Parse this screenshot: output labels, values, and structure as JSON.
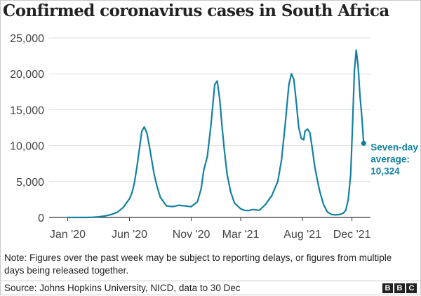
{
  "chart_data": {
    "type": "line",
    "title": "Confirmed coronavirus cases in South Africa",
    "xlabel": "",
    "ylabel": "",
    "ylim": [
      0,
      25000
    ],
    "y_ticks": [
      0,
      5000,
      10000,
      15000,
      20000,
      25000
    ],
    "y_tick_labels": [
      "0",
      "5,000",
      "10,000",
      "15,000",
      "20,000",
      "25,000"
    ],
    "x_tick_labels": [
      "Jan '20",
      "Jun '20",
      "Nov '20",
      "Mar '21",
      "Aug '21",
      "Dec '21"
    ],
    "x_tick_months": [
      0,
      5,
      10,
      14,
      19,
      23
    ],
    "xlim_months": [
      -1.5,
      24.5
    ],
    "series": [
      {
        "name": "Seven-day average",
        "color": "#1380a1",
        "x_months": [
          0,
          1,
          1.5,
          2,
          2.2,
          2.5,
          3,
          3.5,
          4,
          4.5,
          5,
          5.2,
          5.4,
          5.6,
          5.8,
          6.0,
          6.2,
          6.4,
          6.6,
          6.8,
          7.0,
          7.2,
          7.5,
          8,
          8.5,
          9,
          9.5,
          10,
          10.5,
          10.8,
          11,
          11.3,
          11.6,
          11.9,
          12.1,
          12.3,
          12.5,
          12.7,
          12.9,
          13.2,
          13.5,
          14,
          14.3,
          14.6,
          15,
          15.5,
          16,
          16.5,
          17,
          17.3,
          17.6,
          17.9,
          18.1,
          18.3,
          18.5,
          18.7,
          18.9,
          19.1,
          19.2,
          19.4,
          19.6,
          19.8,
          20.0,
          20.2,
          20.4,
          20.7,
          21,
          21.3,
          21.6,
          22,
          22.3,
          22.5,
          22.7,
          22.9,
          23.05,
          23.2,
          23.35,
          23.5,
          23.65,
          23.8,
          23.95
        ],
        "values": [
          0,
          0,
          0,
          20,
          50,
          90,
          200,
          400,
          700,
          1400,
          2600,
          3400,
          4800,
          7000,
          9500,
          12000,
          12600,
          11800,
          10000,
          8000,
          6000,
          4500,
          2800,
          1600,
          1500,
          1700,
          1600,
          1500,
          2200,
          4000,
          6500,
          8500,
          13000,
          18500,
          19000,
          16500,
          12500,
          9000,
          6000,
          3500,
          2000,
          1200,
          1000,
          950,
          1100,
          1000,
          1800,
          3000,
          5000,
          8000,
          13000,
          18500,
          20000,
          19200,
          16000,
          12500,
          11000,
          10800,
          12000,
          12300,
          11800,
          9500,
          7000,
          5200,
          3600,
          1800,
          800,
          450,
          350,
          400,
          600,
          1000,
          2500,
          6000,
          13000,
          20500,
          23300,
          21000,
          17000,
          14000,
          10324
        ]
      }
    ],
    "annotation": {
      "lines": [
        "Seven-day",
        "average:",
        "10,324"
      ],
      "last_value": 10324
    }
  },
  "note": "Note: Figures over the past week may be subject to reporting delays, or figures from multiple days being released together.",
  "source": "Source: Johns Hopkins University, NICD, data to 30 Dec",
  "logo": [
    "B",
    "B",
    "C"
  ]
}
